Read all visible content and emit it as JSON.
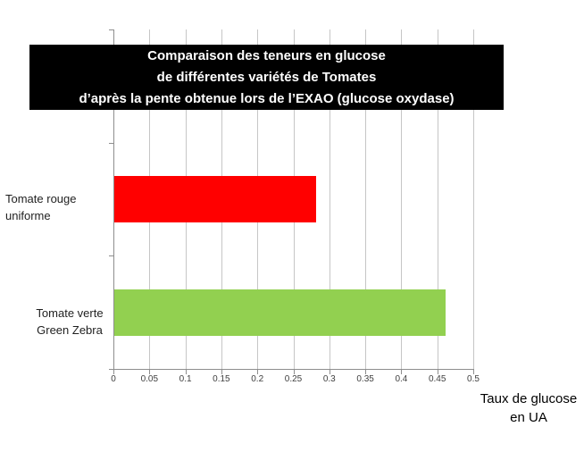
{
  "title_box": {
    "lines": [
      "Comparaison des teneurs en glucose",
      "de différentes variétés de Tomates",
      "d’après la pente obtenue lors de l’EXAO (glucose oxydase)"
    ],
    "background": "#000000",
    "text_color": "#ffffff"
  },
  "categories": [
    {
      "line1": "Tomate rouge",
      "line2": "uniforme"
    },
    {
      "line1": "Tomate verte",
      "line2": "Green Zebra"
    }
  ],
  "x_axis": {
    "tick_labels": [
      "0",
      "0.05",
      "0.1",
      "0.15",
      "0.2",
      "0.25",
      "0.3",
      "0.35",
      "0.4",
      "0.45",
      "0.5"
    ],
    "title_line1": "Taux de glucose",
    "title_line2": "en UA"
  },
  "colors": {
    "bar_red": "#ff0000",
    "bar_green": "#92d050",
    "gridline": "#c6c6c6",
    "axis": "#8e8e8e",
    "tick_label": "#3f3f3f"
  },
  "chart_data": {
    "type": "bar",
    "orientation": "horizontal",
    "title": "Comparaison des teneurs en glucose de différentes variétés de Tomates d’après la pente obtenue lors de l’EXAO (glucose oxydase)",
    "categories": [
      "Tomate rouge uniforme",
      "Tomate verte Green Zebra"
    ],
    "values": [
      0.28,
      0.46
    ],
    "bar_colors": [
      "#ff0000",
      "#92d050"
    ],
    "xlabel": "Taux de glucose en UA",
    "ylabel": "",
    "xlim": [
      0,
      0.5
    ],
    "x_ticks": [
      0,
      0.05,
      0.1,
      0.15,
      0.2,
      0.25,
      0.3,
      0.35,
      0.4,
      0.45,
      0.5
    ],
    "grid": "vertical gridlines at every x tick",
    "legend": "none"
  }
}
